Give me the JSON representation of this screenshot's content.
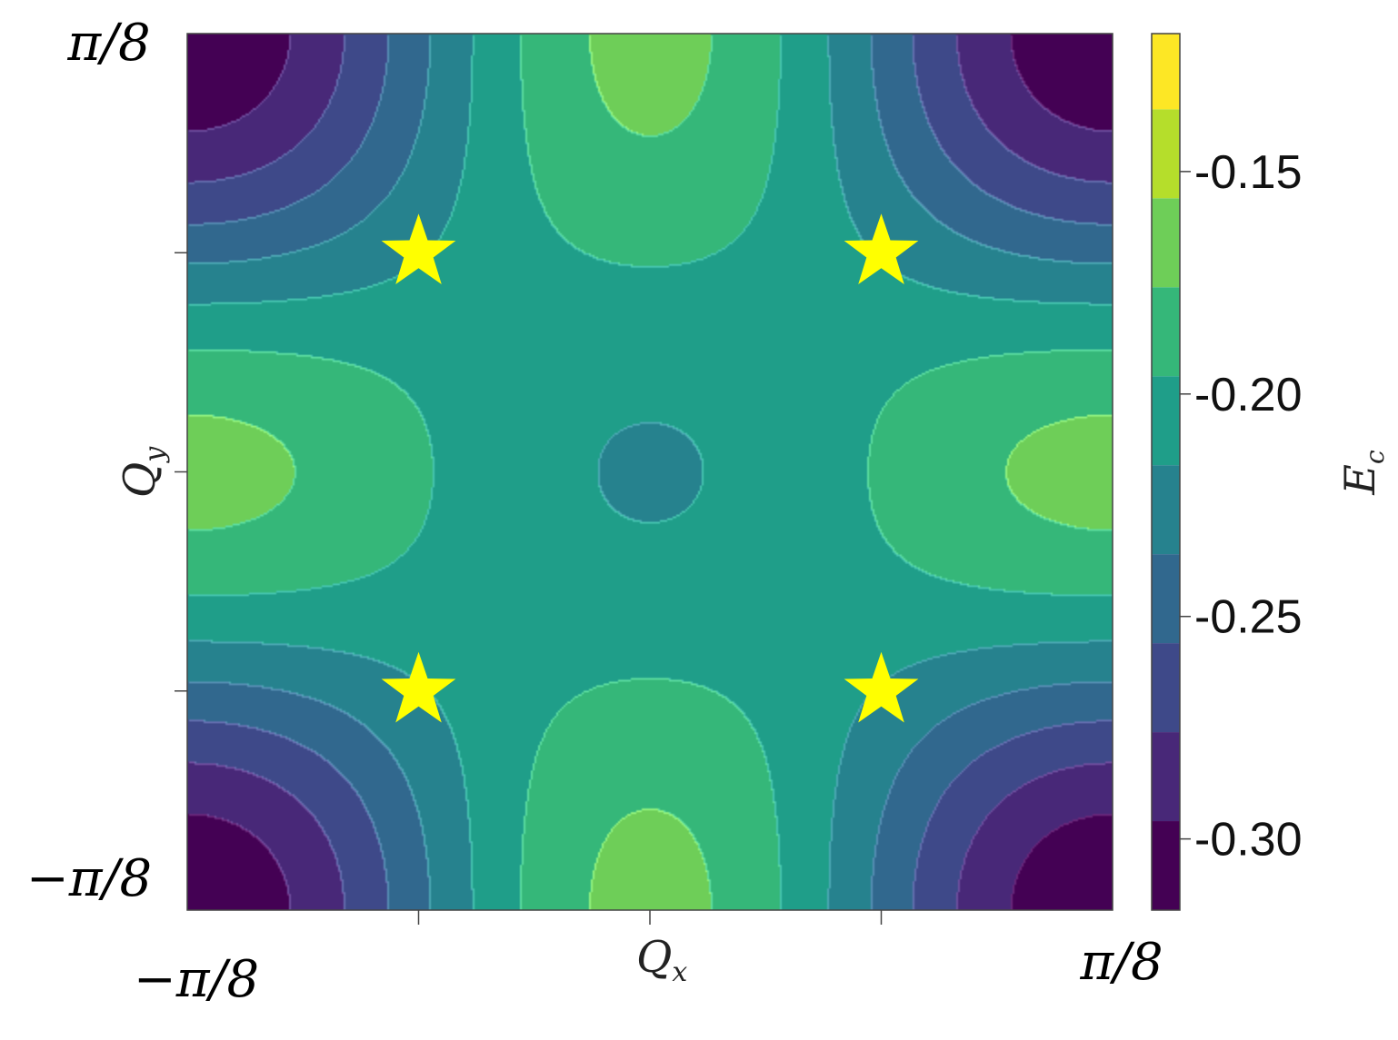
{
  "chart_data": {
    "type": "heatmap",
    "subtype": "filled-contour",
    "title": "",
    "xlabel": "Q",
    "xlabel_sub": "x",
    "ylabel": "Q",
    "ylabel_sub": "y",
    "x_range": [
      -0.3927,
      0.3927
    ],
    "y_range": [
      -0.3927,
      0.3927
    ],
    "x_tick_labels": [
      "−π/8",
      "π/8"
    ],
    "y_tick_labels": [
      "π/8",
      "−π/8"
    ],
    "x_minor_ticks": [
      -0.19635,
      0,
      0.19635
    ],
    "y_minor_ticks": [
      0.19635,
      0,
      -0.19635
    ],
    "field": {
      "model": "E_c(Qx,Qy) = -0.2175 + 0.0475*(cos(8Qx)+cos(8Qy))/2 - 0.0475*cos(8Qx)*cos(8Qy)",
      "offset": -0.2175,
      "amplitude": 0.0475,
      "wavenumber": 8
    },
    "levels": [
      -0.316,
      -0.296,
      -0.276,
      -0.256,
      -0.236,
      -0.216,
      -0.196,
      -0.176,
      -0.156,
      -0.136,
      -0.119
    ],
    "level_colors": [
      "#440154",
      "#482878",
      "#3e4989",
      "#31688e",
      "#26828e",
      "#1f9e89",
      "#35b779",
      "#6ece58",
      "#b5de2b",
      "#fde725"
    ],
    "minima_markers": [
      {
        "x": -0.19635,
        "y": 0.19635
      },
      {
        "x": 0.19635,
        "y": 0.19635
      },
      {
        "x": -0.19635,
        "y": -0.19635
      },
      {
        "x": 0.19635,
        "y": -0.19635
      }
    ],
    "marker_color": "#ffff00",
    "colorbar": {
      "label": "E",
      "label_sub": "c",
      "ticks": [
        -0.15,
        -0.2,
        -0.25,
        -0.3
      ],
      "tick_labels": [
        "-0.15",
        "-0.20",
        "-0.25",
        "-0.30"
      ],
      "range": [
        -0.316,
        -0.119
      ]
    }
  }
}
